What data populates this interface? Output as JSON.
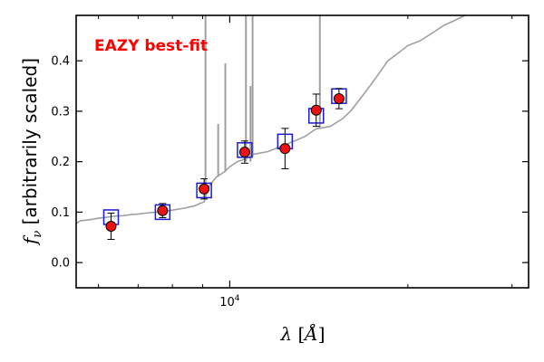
{
  "chart_data": {
    "type": "scatter",
    "annotation": "EAZY best-fit",
    "xlabel": "λ [Å]",
    "ylabel": "f_ν [arbitrarily scaled]",
    "xscale": "log",
    "xlim": [
      5500,
      32000
    ],
    "ylim": [
      -0.05,
      0.49
    ],
    "yticks": [
      "0.0",
      "0.1",
      "0.2",
      "0.3",
      "0.4"
    ],
    "xtick_major": {
      "value": 10000,
      "label": "10^4"
    },
    "colors": {
      "template": "#a0a0a0",
      "observed": "#ee1111",
      "model": "#1a1adc",
      "annotation": "#ff0000"
    },
    "observed_points": [
      {
        "x": 6300,
        "y": 0.072,
        "err": 0.026
      },
      {
        "x": 7700,
        "y": 0.103,
        "err": 0.014
      },
      {
        "x": 9050,
        "y": 0.146,
        "err": 0.02
      },
      {
        "x": 10600,
        "y": 0.219,
        "err": 0.022
      },
      {
        "x": 12400,
        "y": 0.226,
        "err": 0.04
      },
      {
        "x": 14000,
        "y": 0.302,
        "err": 0.032
      },
      {
        "x": 15300,
        "y": 0.325,
        "err": 0.02
      }
    ],
    "model_points": [
      {
        "x": 6300,
        "y": 0.09
      },
      {
        "x": 7700,
        "y": 0.1
      },
      {
        "x": 9050,
        "y": 0.143
      },
      {
        "x": 10600,
        "y": 0.223
      },
      {
        "x": 12400,
        "y": 0.24
      },
      {
        "x": 14000,
        "y": 0.291
      },
      {
        "x": 15300,
        "y": 0.33
      }
    ],
    "template_continuum": [
      [
        5500,
        0.078
      ],
      [
        5600,
        0.083
      ],
      [
        5800,
        0.085
      ],
      [
        6000,
        0.088
      ],
      [
        6200,
        0.09
      ],
      [
        6400,
        0.092
      ],
      [
        6600,
        0.093
      ],
      [
        6800,
        0.095
      ],
      [
        7000,
        0.096
      ],
      [
        7200,
        0.098
      ],
      [
        7500,
        0.1
      ],
      [
        7800,
        0.102
      ],
      [
        8100,
        0.105
      ],
      [
        8400,
        0.108
      ],
      [
        8700,
        0.112
      ],
      [
        8900,
        0.117
      ],
      [
        9050,
        0.12
      ],
      [
        9200,
        0.15
      ],
      [
        9500,
        0.17
      ],
      [
        9800,
        0.18
      ],
      [
        10000,
        0.19
      ],
      [
        10300,
        0.2
      ],
      [
        10600,
        0.205
      ],
      [
        11000,
        0.215
      ],
      [
        11600,
        0.22
      ],
      [
        12200,
        0.23
      ],
      [
        12800,
        0.24
      ],
      [
        13400,
        0.25
      ],
      [
        14000,
        0.265
      ],
      [
        14800,
        0.27
      ],
      [
        15500,
        0.285
      ],
      [
        16000,
        0.3
      ],
      [
        16500,
        0.32
      ],
      [
        17000,
        0.34
      ],
      [
        17500,
        0.36
      ],
      [
        18000,
        0.38
      ],
      [
        18500,
        0.4
      ],
      [
        19000,
        0.41
      ],
      [
        20000,
        0.43
      ],
      [
        21000,
        0.44
      ],
      [
        22000,
        0.455
      ],
      [
        23000,
        0.47
      ],
      [
        24000,
        0.48
      ],
      [
        25000,
        0.49
      ]
    ],
    "template_lines": [
      {
        "x": 9100,
        "y0": 0.125,
        "y1": 0.49
      },
      {
        "x": 9560,
        "y0": 0.17,
        "y1": 0.275
      },
      {
        "x": 9830,
        "y0": 0.18,
        "y1": 0.395
      },
      {
        "x": 10650,
        "y0": 0.2,
        "y1": 0.49
      },
      {
        "x": 10840,
        "y0": 0.2,
        "y1": 0.35
      },
      {
        "x": 10930,
        "y0": 0.21,
        "y1": 0.49
      },
      {
        "x": 14200,
        "y0": 0.265,
        "y1": 0.49
      }
    ]
  }
}
